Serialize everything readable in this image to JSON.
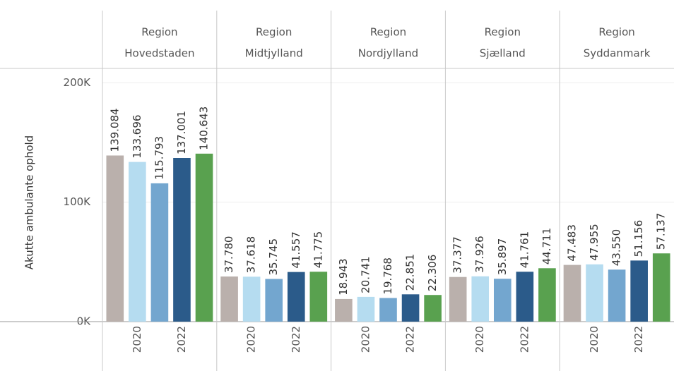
{
  "chart_data": {
    "type": "bar",
    "y_label": "Akutte ambulante ophold",
    "categories": [
      null,
      "2020",
      null,
      "2022",
      null
    ],
    "colors": [
      "#bab0ac",
      "#b5dcf0",
      "#73a6cf",
      "#2b5b8a",
      "#59a14f"
    ],
    "ylim": [
      0,
      212000
    ],
    "yticks": [
      {
        "value": 0,
        "label": "0K"
      },
      {
        "value": 100000,
        "label": "100K"
      },
      {
        "value": 200000,
        "label": "200K"
      }
    ],
    "grid": true,
    "panels": [
      {
        "header": [
          "Region",
          "Hovedstaden"
        ],
        "values": [
          139084,
          133696,
          115793,
          137001,
          140643
        ],
        "value_labels": [
          "139.084",
          "133.696",
          "115.793",
          "137.001",
          "140.643"
        ]
      },
      {
        "header": [
          "Region",
          "Midtjylland"
        ],
        "values": [
          37780,
          37618,
          35745,
          41557,
          41775
        ],
        "value_labels": [
          "37.780",
          "37.618",
          "35.745",
          "41.557",
          "41.775"
        ]
      },
      {
        "header": [
          "Region",
          "Nordjylland"
        ],
        "values": [
          18943,
          20741,
          19768,
          22851,
          22306
        ],
        "value_labels": [
          "18.943",
          "20.741",
          "19.768",
          "22.851",
          "22.306"
        ]
      },
      {
        "header": [
          "Region",
          "Sjælland"
        ],
        "values": [
          37377,
          37926,
          35897,
          41761,
          44711
        ],
        "value_labels": [
          "37.377",
          "37.926",
          "35.897",
          "41.761",
          "44.711"
        ]
      },
      {
        "header": [
          "Region",
          "Syddanmark"
        ],
        "values": [
          47483,
          47955,
          43550,
          51156,
          57137
        ],
        "value_labels": [
          "47.483",
          "47.955",
          "43.550",
          "51.156",
          "57.137"
        ]
      }
    ]
  }
}
